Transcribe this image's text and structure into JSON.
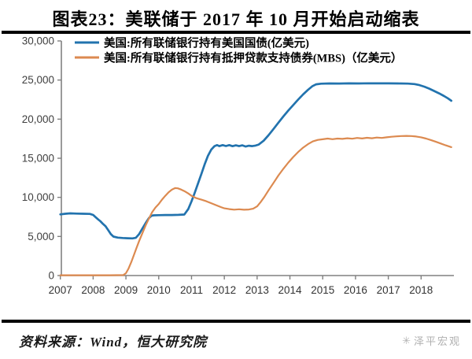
{
  "header": {
    "title": "图表23：美联储于 2017 年 10 月开始启动缩表"
  },
  "footer": {
    "source": "资料来源：Wind，恒大研究院",
    "logo_icon": "✳",
    "logo_text": "泽平宏观"
  },
  "colors": {
    "treasury_line": "#2273AE",
    "mbs_line": "#DC8A50",
    "axis": "#808080",
    "tick_label": "#404040",
    "legend_text": "#000000",
    "rule": "#000000",
    "logo": "#b0b0b0"
  },
  "chart_data": {
    "type": "line",
    "title": "图表23：美联储于 2017 年 10 月开始启动缩表",
    "xlabel": "",
    "ylabel": "",
    "grid": false,
    "legend_position": "top-left-inside",
    "x_axis": {
      "range": [
        2007,
        2019
      ],
      "ticks": [
        2007,
        2008,
        2009,
        2010,
        2011,
        2012,
        2013,
        2014,
        2015,
        2016,
        2017,
        2018
      ],
      "tick_labels": [
        "2007",
        "2008",
        "2009",
        "2010",
        "2011",
        "2012",
        "2013",
        "2014",
        "2015",
        "2016",
        "2017",
        "2018"
      ]
    },
    "y_axis": {
      "range": [
        0,
        30000
      ],
      "ticks": [
        0,
        5000,
        10000,
        15000,
        20000,
        25000,
        30000
      ],
      "tick_labels": [
        "0",
        "5,000",
        "10,000",
        "15,000",
        "20,000",
        "25,000",
        "30,000"
      ]
    },
    "series": [
      {
        "name": "美国:所有联储银行持有美国国债(亿美元)",
        "color": "#2273AE",
        "points": [
          [
            2007.0,
            7820
          ],
          [
            2007.15,
            7900
          ],
          [
            2007.3,
            7950
          ],
          [
            2007.5,
            7920
          ],
          [
            2007.7,
            7900
          ],
          [
            2007.9,
            7880
          ],
          [
            2008.0,
            7750
          ],
          [
            2008.08,
            7450
          ],
          [
            2008.16,
            7150
          ],
          [
            2008.22,
            6950
          ],
          [
            2008.3,
            6600
          ],
          [
            2008.38,
            6300
          ],
          [
            2008.46,
            5800
          ],
          [
            2008.54,
            5300
          ],
          [
            2008.62,
            4980
          ],
          [
            2008.75,
            4850
          ],
          [
            2008.9,
            4800
          ],
          [
            2009.05,
            4770
          ],
          [
            2009.2,
            4750
          ],
          [
            2009.3,
            4820
          ],
          [
            2009.4,
            5300
          ],
          [
            2009.5,
            6000
          ],
          [
            2009.6,
            6700
          ],
          [
            2009.7,
            7350
          ],
          [
            2009.78,
            7650
          ],
          [
            2009.85,
            7700
          ],
          [
            2010.0,
            7720
          ],
          [
            2010.2,
            7740
          ],
          [
            2010.4,
            7740
          ],
          [
            2010.6,
            7760
          ],
          [
            2010.78,
            7800
          ],
          [
            2010.9,
            8500
          ],
          [
            2011.0,
            9500
          ],
          [
            2011.1,
            10600
          ],
          [
            2011.2,
            11800
          ],
          [
            2011.3,
            13000
          ],
          [
            2011.4,
            14200
          ],
          [
            2011.5,
            15300
          ],
          [
            2011.6,
            16100
          ],
          [
            2011.7,
            16550
          ],
          [
            2011.78,
            16680
          ],
          [
            2011.85,
            16550
          ],
          [
            2011.95,
            16680
          ],
          [
            2012.05,
            16560
          ],
          [
            2012.15,
            16680
          ],
          [
            2012.25,
            16540
          ],
          [
            2012.35,
            16650
          ],
          [
            2012.45,
            16550
          ],
          [
            2012.55,
            16650
          ],
          [
            2012.65,
            16500
          ],
          [
            2012.75,
            16600
          ],
          [
            2012.85,
            16550
          ],
          [
            2012.95,
            16620
          ],
          [
            2013.05,
            16750
          ],
          [
            2013.2,
            17250
          ],
          [
            2013.35,
            17950
          ],
          [
            2013.5,
            18750
          ],
          [
            2013.65,
            19550
          ],
          [
            2013.8,
            20350
          ],
          [
            2013.95,
            21100
          ],
          [
            2014.1,
            21800
          ],
          [
            2014.25,
            22500
          ],
          [
            2014.4,
            23150
          ],
          [
            2014.55,
            23750
          ],
          [
            2014.68,
            24200
          ],
          [
            2014.8,
            24450
          ],
          [
            2014.95,
            24530
          ],
          [
            2015.2,
            24560
          ],
          [
            2015.5,
            24550
          ],
          [
            2015.8,
            24570
          ],
          [
            2016.1,
            24560
          ],
          [
            2016.4,
            24580
          ],
          [
            2016.7,
            24570
          ],
          [
            2017.0,
            24570
          ],
          [
            2017.3,
            24560
          ],
          [
            2017.6,
            24540
          ],
          [
            2017.8,
            24480
          ],
          [
            2017.95,
            24350
          ],
          [
            2018.1,
            24150
          ],
          [
            2018.25,
            23900
          ],
          [
            2018.4,
            23600
          ],
          [
            2018.55,
            23300
          ],
          [
            2018.7,
            22950
          ],
          [
            2018.82,
            22650
          ],
          [
            2018.92,
            22350
          ]
        ]
      },
      {
        "name": "美国:所有联储银行持有抵押贷款支持债券(MBS)（亿美元）",
        "color": "#DC8A50",
        "points": [
          [
            2007.0,
            40
          ],
          [
            2007.5,
            40
          ],
          [
            2008.0,
            40
          ],
          [
            2008.5,
            40
          ],
          [
            2008.92,
            60
          ],
          [
            2009.0,
            300
          ],
          [
            2009.08,
            900
          ],
          [
            2009.16,
            1700
          ],
          [
            2009.24,
            2600
          ],
          [
            2009.32,
            3500
          ],
          [
            2009.4,
            4400
          ],
          [
            2009.5,
            5400
          ],
          [
            2009.6,
            6400
          ],
          [
            2009.7,
            7300
          ],
          [
            2009.8,
            8100
          ],
          [
            2009.9,
            8700
          ],
          [
            2010.0,
            9150
          ],
          [
            2010.1,
            9700
          ],
          [
            2010.2,
            10200
          ],
          [
            2010.3,
            10650
          ],
          [
            2010.4,
            10980
          ],
          [
            2010.5,
            11180
          ],
          [
            2010.58,
            11150
          ],
          [
            2010.68,
            11000
          ],
          [
            2010.78,
            10800
          ],
          [
            2010.9,
            10500
          ],
          [
            2011.0,
            10200
          ],
          [
            2011.15,
            9900
          ],
          [
            2011.3,
            9700
          ],
          [
            2011.45,
            9500
          ],
          [
            2011.6,
            9250
          ],
          [
            2011.75,
            9000
          ],
          [
            2011.9,
            8750
          ],
          [
            2012.0,
            8600
          ],
          [
            2012.15,
            8500
          ],
          [
            2012.3,
            8430
          ],
          [
            2012.45,
            8480
          ],
          [
            2012.6,
            8420
          ],
          [
            2012.75,
            8450
          ],
          [
            2012.88,
            8550
          ],
          [
            2013.0,
            8850
          ],
          [
            2013.1,
            9350
          ],
          [
            2013.22,
            10050
          ],
          [
            2013.35,
            10900
          ],
          [
            2013.5,
            11850
          ],
          [
            2013.65,
            12800
          ],
          [
            2013.8,
            13650
          ],
          [
            2013.95,
            14450
          ],
          [
            2014.1,
            15150
          ],
          [
            2014.25,
            15800
          ],
          [
            2014.4,
            16350
          ],
          [
            2014.55,
            16800
          ],
          [
            2014.7,
            17150
          ],
          [
            2014.85,
            17350
          ],
          [
            2015.0,
            17430
          ],
          [
            2015.15,
            17520
          ],
          [
            2015.3,
            17440
          ],
          [
            2015.45,
            17520
          ],
          [
            2015.6,
            17480
          ],
          [
            2015.75,
            17560
          ],
          [
            2015.9,
            17500
          ],
          [
            2016.05,
            17600
          ],
          [
            2016.2,
            17530
          ],
          [
            2016.35,
            17620
          ],
          [
            2016.5,
            17560
          ],
          [
            2016.65,
            17650
          ],
          [
            2016.8,
            17600
          ],
          [
            2016.95,
            17680
          ],
          [
            2017.1,
            17750
          ],
          [
            2017.25,
            17800
          ],
          [
            2017.4,
            17840
          ],
          [
            2017.55,
            17860
          ],
          [
            2017.7,
            17840
          ],
          [
            2017.85,
            17780
          ],
          [
            2018.0,
            17680
          ],
          [
            2018.15,
            17520
          ],
          [
            2018.3,
            17330
          ],
          [
            2018.45,
            17100
          ],
          [
            2018.6,
            16880
          ],
          [
            2018.75,
            16650
          ],
          [
            2018.92,
            16420
          ]
        ]
      }
    ]
  }
}
